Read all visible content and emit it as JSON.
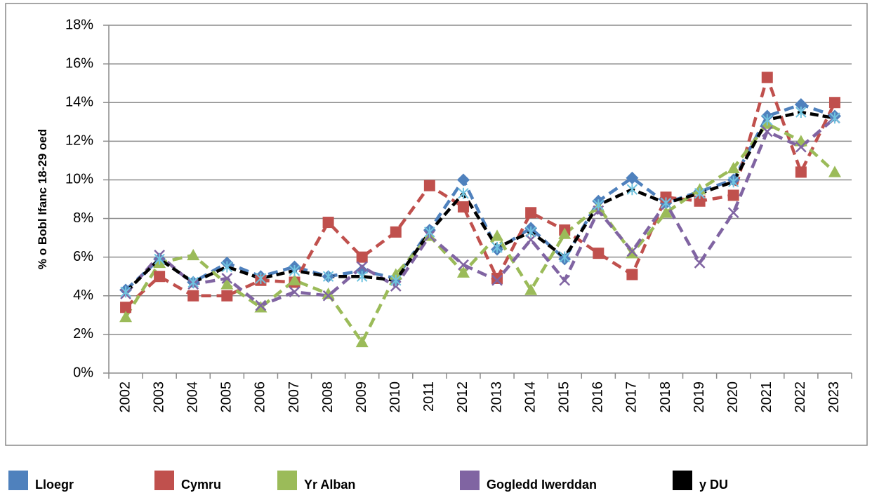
{
  "chart_data": {
    "type": "line",
    "y_label": "% o Bobl Ifanc 18-29 oed",
    "categories": [
      "2002",
      "2003",
      "2004",
      "2005",
      "2006",
      "2007",
      "2008",
      "2009",
      "2010",
      "2011",
      "2012",
      "2013",
      "2014",
      "2015",
      "2016",
      "2017",
      "2018",
      "2019",
      "2020",
      "2021",
      "2022",
      "2023"
    ],
    "series": [
      {
        "name": "Lloegr",
        "color": "#4f81bd",
        "marker": "diamond",
        "values": [
          4.3,
          5.9,
          4.7,
          5.7,
          5.0,
          5.5,
          5.0,
          5.3,
          4.9,
          7.4,
          10.0,
          6.4,
          7.5,
          5.9,
          8.9,
          10.1,
          8.8,
          9.4,
          10.0,
          13.3,
          13.9,
          13.3
        ]
      },
      {
        "name": "Cymru",
        "color": "#c0504d",
        "marker": "square",
        "values": [
          3.4,
          5.0,
          4.0,
          4.0,
          4.8,
          4.7,
          7.8,
          6.0,
          7.3,
          9.7,
          8.6,
          4.9,
          8.3,
          7.4,
          6.2,
          5.1,
          9.1,
          8.9,
          9.2,
          15.3,
          10.4,
          14.0
        ]
      },
      {
        "name": "Yr Alban",
        "color": "#9bbb59",
        "marker": "triangle",
        "values": [
          2.9,
          5.7,
          6.1,
          4.6,
          3.4,
          4.8,
          4.1,
          1.6,
          5.1,
          7.1,
          5.2,
          7.1,
          4.3,
          7.2,
          8.6,
          6.2,
          8.3,
          9.5,
          10.6,
          12.9,
          12.0,
          10.4
        ]
      },
      {
        "name": "Gogledd Iwerddan",
        "color": "#8064a2",
        "marker": "x",
        "values": [
          4.1,
          6.1,
          4.6,
          4.9,
          3.5,
          4.2,
          4.0,
          5.5,
          4.5,
          7.1,
          5.6,
          4.8,
          6.9,
          4.8,
          8.4,
          6.3,
          8.8,
          5.7,
          8.3,
          12.5,
          11.7,
          13.2
        ]
      },
      {
        "name": "y DU",
        "color": "#000000",
        "marker": "asterisk",
        "values": [
          4.2,
          5.9,
          4.7,
          5.5,
          4.9,
          5.3,
          5.0,
          5.0,
          4.8,
          7.3,
          9.3,
          6.5,
          7.3,
          6.0,
          8.7,
          9.5,
          8.8,
          9.3,
          9.9,
          13.1,
          13.5,
          13.2
        ]
      }
    ],
    "ylim": [
      0,
      18
    ],
    "yticks": [
      {
        "value": 0,
        "label": "0%"
      },
      {
        "value": 2,
        "label": "2%"
      },
      {
        "value": 4,
        "label": "4%"
      },
      {
        "value": 6,
        "label": "6%"
      },
      {
        "value": 8,
        "label": "8%"
      },
      {
        "value": 10,
        "label": "10%"
      },
      {
        "value": 12,
        "label": "12%"
      },
      {
        "value": 14,
        "label": "14%"
      },
      {
        "value": 16,
        "label": "16%"
      },
      {
        "value": 18,
        "label": "18%"
      }
    ],
    "grid": true,
    "legend": "bottom"
  }
}
